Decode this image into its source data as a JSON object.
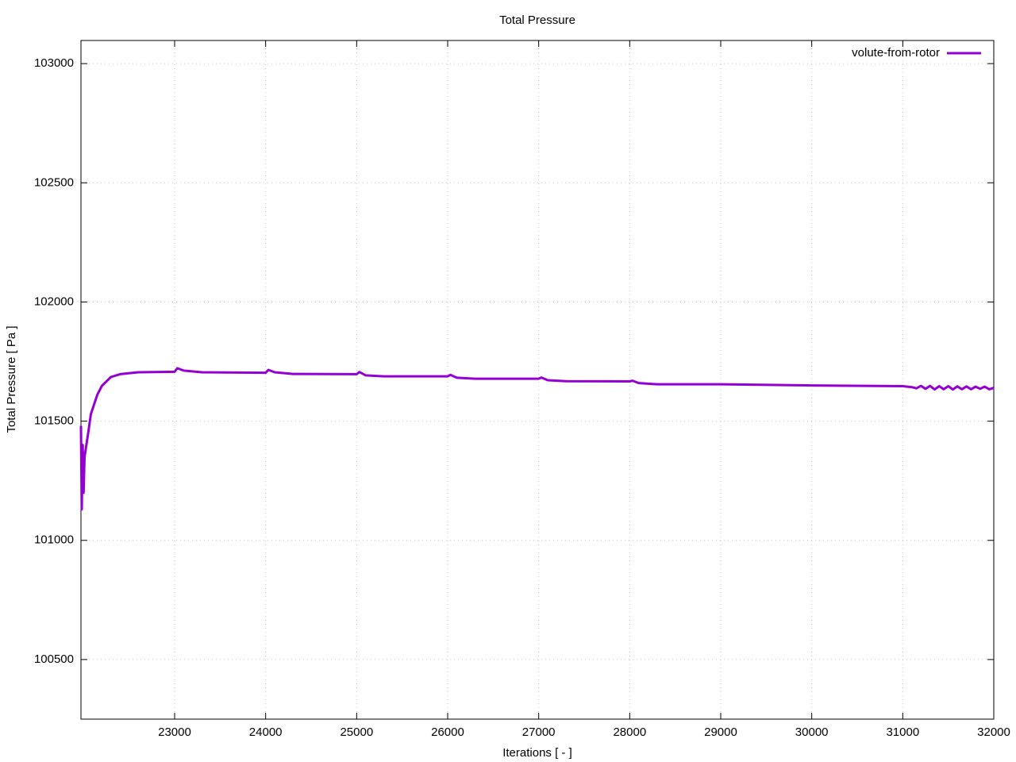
{
  "chart_data": {
    "type": "line",
    "title": "Total Pressure",
    "x_label": "Iterations [ - ]",
    "y_label": "Total Pressure [ Pa ]",
    "x": [
      21971,
      21980,
      21990,
      22000,
      22010,
      22050,
      22080,
      22150,
      22200,
      22300,
      22400,
      22600,
      23000,
      23030,
      23100,
      23300,
      24000,
      24030,
      24100,
      24300,
      25000,
      25030,
      25100,
      25300,
      26000,
      26030,
      26100,
      26300,
      27000,
      27030,
      27100,
      27300,
      28000,
      28030,
      28100,
      28300,
      29000,
      30000,
      31000,
      31100,
      31150,
      31200,
      31250,
      31300,
      31350,
      31400,
      31450,
      31500,
      31550,
      31600,
      31650,
      31700,
      31750,
      31800,
      31850,
      31900,
      31950,
      32000
    ],
    "series": [
      {
        "name": "volute-from-rotor",
        "color": "#9400d3",
        "values": [
          101480,
          101130,
          101400,
          101200,
          101350,
          101450,
          101530,
          101610,
          101648,
          101685,
          101697,
          101705,
          101707,
          101722,
          101712,
          101705,
          101703,
          101715,
          101705,
          101698,
          101697,
          101706,
          101692,
          101688,
          101688,
          101694,
          101682,
          101678,
          101678,
          101683,
          101672,
          101668,
          101667,
          101670,
          101660,
          101655,
          101655,
          101650,
          101647,
          101643,
          101638,
          101648,
          101636,
          101648,
          101633,
          101647,
          101634,
          101647,
          101633,
          101646,
          101634,
          101646,
          101634,
          101645,
          101636,
          101645,
          101634,
          101640
        ]
      }
    ],
    "xlim": [
      21971,
      32000
    ],
    "ylim": [
      100250,
      103097
    ],
    "xticks": [
      23000,
      24000,
      25000,
      26000,
      27000,
      28000,
      29000,
      30000,
      31000,
      32000
    ],
    "yticks": [
      100500,
      101000,
      101500,
      102000,
      102500,
      103000
    ],
    "grid": true,
    "legend": "top-right"
  }
}
